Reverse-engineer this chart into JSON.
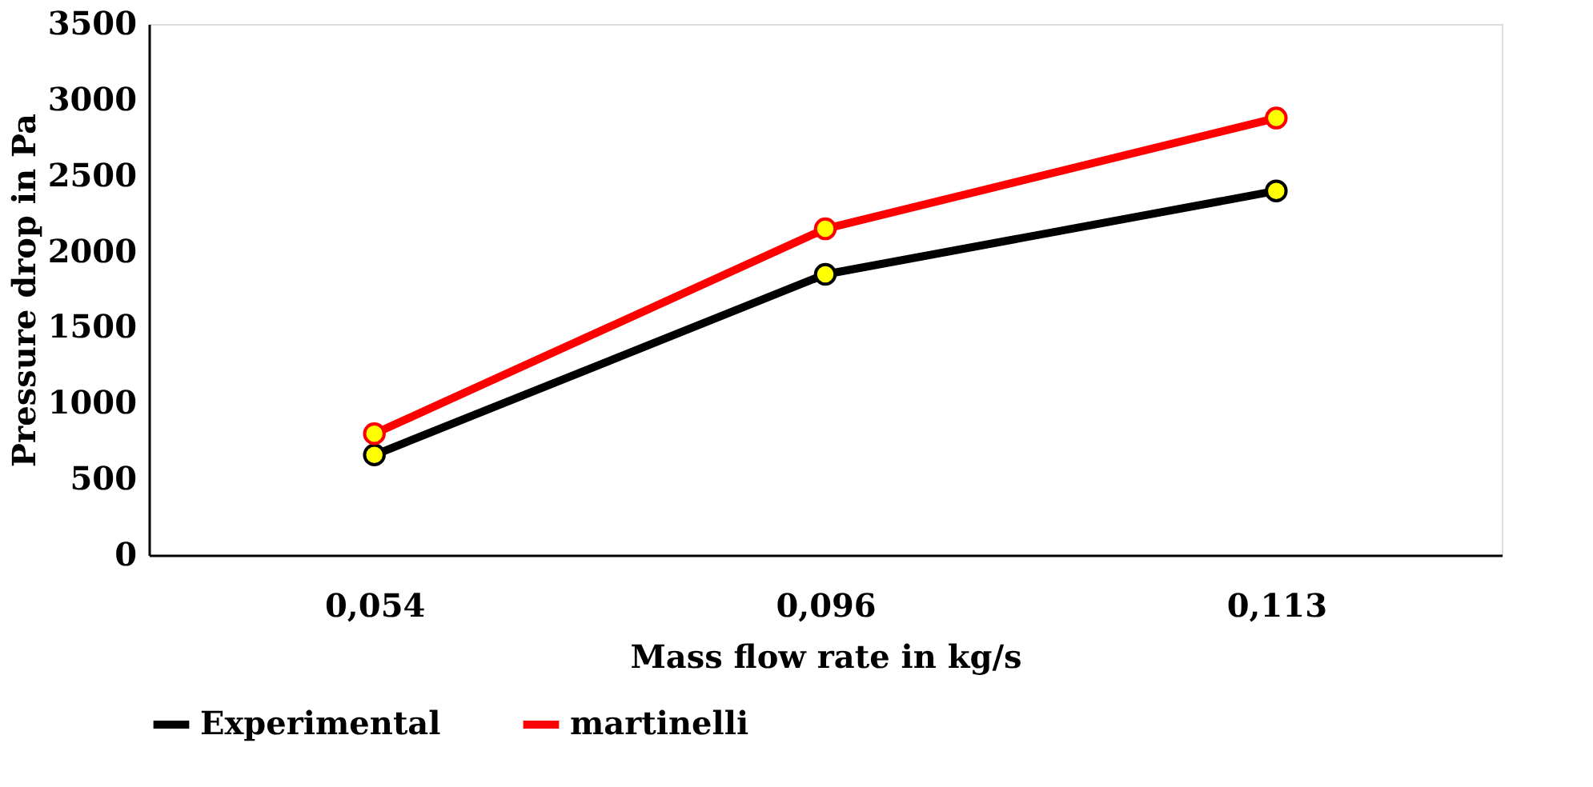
{
  "chart_data": {
    "type": "line",
    "xlabel": "Mass flow rate in kg/s",
    "ylabel": "Pressure drop in Pa",
    "categories": [
      "0,054",
      "0,096",
      "0,113"
    ],
    "series": [
      {
        "name": "Experimental",
        "color": "#000000",
        "values": [
          660,
          1850,
          2400
        ]
      },
      {
        "name": "martinelli",
        "color": "#ff0000",
        "values": [
          800,
          2150,
          2880
        ]
      }
    ],
    "ylim": [
      0,
      3500
    ],
    "yticks": [
      0,
      500,
      1000,
      1500,
      2000,
      2500,
      3000,
      3500
    ],
    "grid": false,
    "legend": "bottom",
    "marker": "circle",
    "line_style": "solid"
  }
}
